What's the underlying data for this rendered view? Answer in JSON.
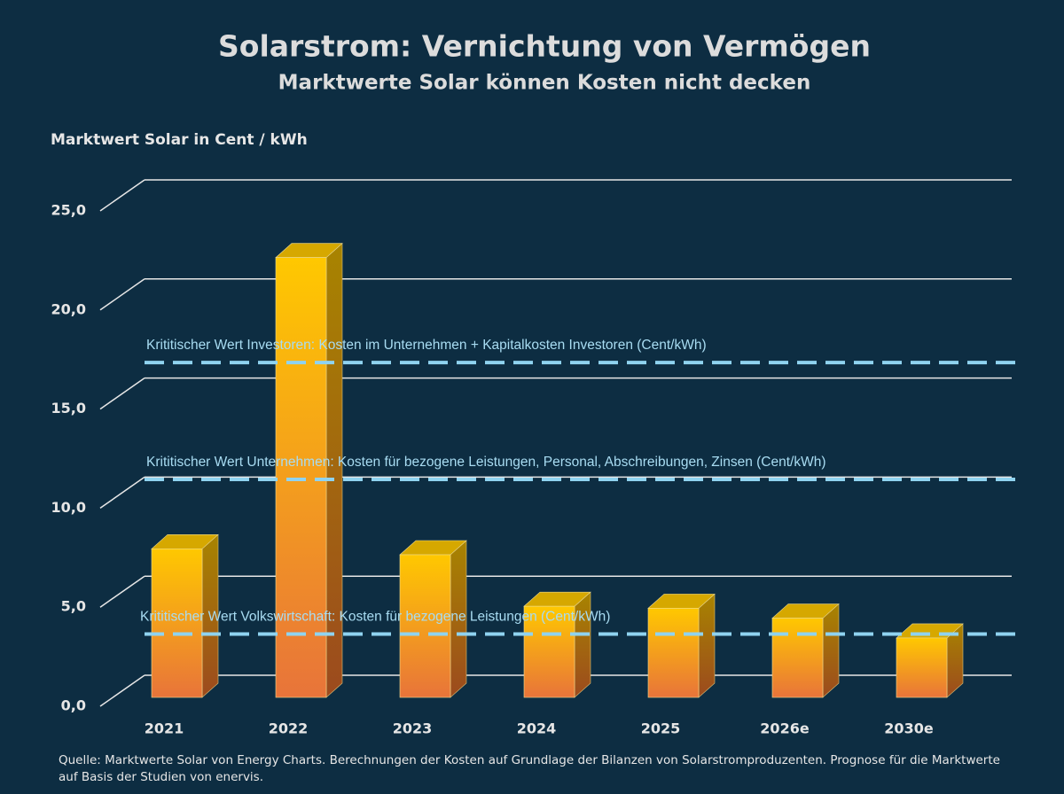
{
  "chart_data": {
    "type": "bar3d",
    "title": "Solarstrom: Vernichtung von Vermögen",
    "subtitle": "Marktwerte Solar können Kosten nicht decken",
    "y_axis_label": "Marktwert Solar in Cent / kWh",
    "categories": [
      "2021",
      "2022",
      "2023",
      "2024",
      "2025",
      "2026e",
      "2030e"
    ],
    "values": [
      7.5,
      22.2,
      7.2,
      4.6,
      4.5,
      4.0,
      3.0
    ],
    "color": "#ffc800",
    "ylim": [
      0,
      25
    ],
    "yticks": [
      {
        "value": 0,
        "label": "0,0"
      },
      {
        "value": 5,
        "label": "5,0"
      },
      {
        "value": 10,
        "label": "10,0"
      },
      {
        "value": 15,
        "label": "15,0"
      },
      {
        "value": 20,
        "label": "20,0"
      },
      {
        "value": 25,
        "label": "25,0"
      }
    ],
    "grid": true,
    "reference_lines": [
      {
        "label": "Krititischer Wert Investoren: Kosten im Unternehmen + Kapitalkosten Investoren (Cent/kWh)",
        "value": 16.9
      },
      {
        "label": "Krititischer Wert Unternehmen: Kosten für bezogene Leistungen, Personal, Abschreibungen, Zinsen (Cent/kWh)",
        "value": 11.0
      },
      {
        "label": "Krititischer Wert Volkswirtschaft: Kosten für bezogene Leistungen (Cent/kWh)",
        "value": 3.2
      }
    ],
    "source": "Quelle: Marktwerte Solar von Energy Charts. Berechnungen der Kosten auf Grundlage der Bilanzen von Solarstromproduzenten. Prognose für die Marktwerte auf Basis der Studien von enervis."
  }
}
